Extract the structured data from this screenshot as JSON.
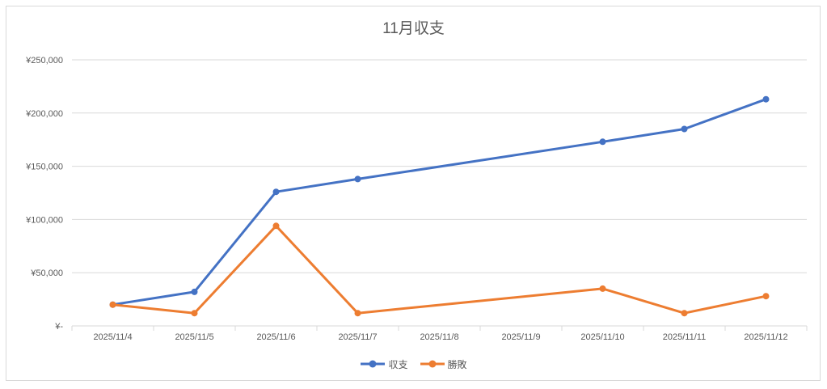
{
  "window": {
    "background": "#ffffff"
  },
  "colors": {
    "series1": "#4472C4",
    "series2": "#ED7D31",
    "gridline": "#D9D9D9",
    "axis": "#D9D9D9",
    "border": "#D9D9D9",
    "text": "#595959",
    "title": "#595959"
  },
  "chart_data": {
    "type": "line",
    "title": "11月収支",
    "categories": [
      "2025/11/4",
      "2025/11/5",
      "2025/11/6",
      "2025/11/7",
      "2025/11/8",
      "2025/11/9",
      "2025/11/10",
      "2025/11/11",
      "2025/11/12"
    ],
    "series": [
      {
        "name": "収支",
        "color": "#4472C4",
        "values": [
          20000,
          32000,
          126000,
          138000,
          null,
          null,
          173000,
          185000,
          213000
        ]
      },
      {
        "name": "勝敗",
        "color": "#ED7D31",
        "values": [
          20000,
          12000,
          94000,
          12000,
          null,
          null,
          35000,
          12000,
          28000
        ]
      }
    ],
    "ylim": [
      0,
      250000
    ],
    "ytick_interval": 50000,
    "ytick_labels": [
      "¥-",
      "¥50,000",
      "¥100,000",
      "¥150,000",
      "¥200,000",
      "¥250,000"
    ],
    "grid": true,
    "legend_position": "bottom",
    "marker": "circle",
    "gap_handling": "connect-across-missing"
  }
}
